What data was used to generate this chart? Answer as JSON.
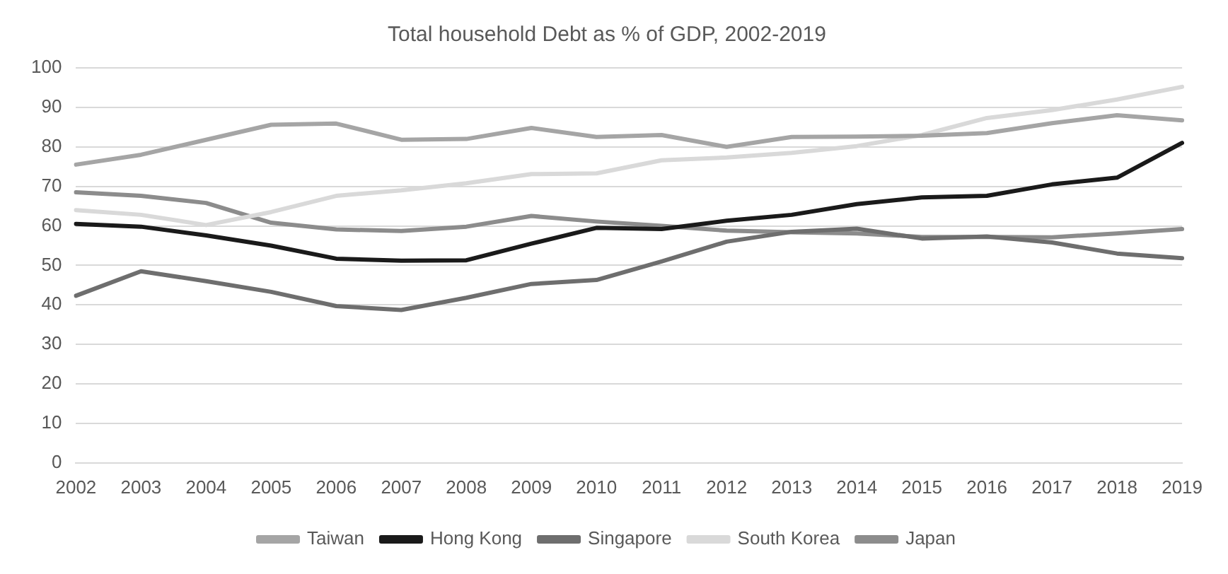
{
  "chart_data": {
    "type": "line",
    "title": "Total household Debt as % of GDP, 2002-2019",
    "categories": [
      "2002",
      "2003",
      "2004",
      "2005",
      "2006",
      "2007",
      "2008",
      "2009",
      "2010",
      "2011",
      "2012",
      "2013",
      "2014",
      "2015",
      "2016",
      "2017",
      "2018",
      "2019"
    ],
    "series": [
      {
        "name": "Taiwan",
        "color": "#a5a5a5",
        "values": [
          75.5,
          78,
          81.8,
          85.6,
          85.9,
          81.8,
          82,
          84.8,
          82.5,
          83,
          80,
          82.5,
          82.6,
          82.8,
          83.5,
          86,
          88,
          86.7
        ]
      },
      {
        "name": "Hong Kong",
        "color": "#1a1a1a",
        "values": [
          60.5,
          59.8,
          57.6,
          55,
          51.7,
          51.2,
          51.3,
          55.5,
          59.5,
          59.2,
          61.3,
          62.8,
          65.5,
          67.2,
          67.6,
          70.5,
          72.2,
          81
        ]
      },
      {
        "name": "Singapore",
        "color": "#6e6e6e",
        "values": [
          42.3,
          48.5,
          46,
          43.3,
          39.7,
          38.7,
          41.8,
          45.3,
          46.3,
          51,
          56,
          58.5,
          59.3,
          56.8,
          57.3,
          55.8,
          53,
          51.8
        ]
      },
      {
        "name": "South Korea",
        "color": "#d9d9d9",
        "values": [
          64,
          62.8,
          60.2,
          63.5,
          67.6,
          69,
          70.8,
          73.1,
          73.3,
          76.6,
          77.3,
          78.5,
          80.2,
          83,
          87.3,
          89.3,
          92,
          95.2
        ]
      },
      {
        "name": "Japan",
        "color": "#8c8c8c",
        "values": [
          68.5,
          67.6,
          65.8,
          60.8,
          59.1,
          58.7,
          59.8,
          62.5,
          61.1,
          60,
          58.8,
          58.4,
          58.1,
          57.2,
          57.2,
          57.1,
          58.1,
          59.2
        ]
      }
    ],
    "ylim": [
      0,
      100
    ],
    "yticks": [
      0,
      10,
      20,
      30,
      40,
      50,
      60,
      70,
      80,
      90,
      100
    ],
    "grid": "y",
    "legend": "bottom",
    "marker": "none",
    "line_style": "solid"
  }
}
